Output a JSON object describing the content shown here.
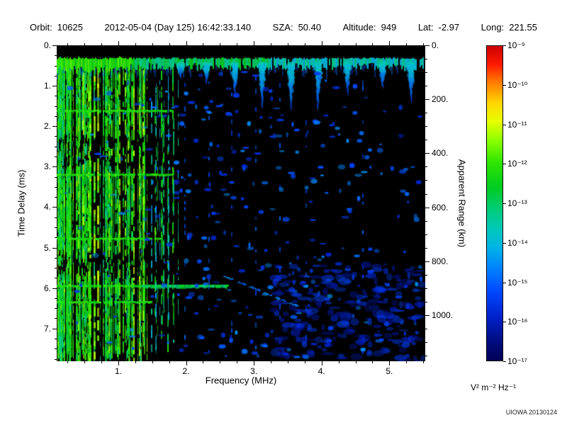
{
  "header": {
    "items": [
      {
        "label": "Orbit:",
        "value": "10625"
      },
      {
        "label": "",
        "value": "2012-05-04 (Day 125) 16:42:33.140"
      },
      {
        "label": "SZA:",
        "value": "50.40"
      },
      {
        "label": "Altitude:",
        "value": "949"
      },
      {
        "label": "Lat:",
        "value": "-2.97"
      },
      {
        "label": "Long:",
        "value": "221.55"
      }
    ]
  },
  "footer": {
    "credit": "UIOWA 20130124"
  },
  "chart_data": {
    "type": "heatmap",
    "subtype": "radar-sounder-ionogram",
    "xlabel": "Frequency (MHz)",
    "ylabel": "Time Delay (ms)",
    "y2label": "Apparent Range (km)",
    "x_range": [
      0.09,
      5.53
    ],
    "y_range_ms": [
      0,
      7.81
    ],
    "y_axis_inverted": true,
    "x_ticks": [
      "1.",
      "2.",
      "3.",
      "4.",
      "5."
    ],
    "x_tick_values": [
      1,
      2,
      3,
      4,
      5
    ],
    "y_ticks": [
      "0.",
      "1.",
      "2.",
      "3.",
      "4.",
      "5.",
      "6.",
      "7."
    ],
    "y_tick_values": [
      0,
      1,
      2,
      3,
      4,
      5,
      6,
      7
    ],
    "y2_ticks": [
      "0.",
      "200.",
      "400.",
      "600.",
      "800.",
      "1000."
    ],
    "y2_tick_values": [
      0,
      200,
      400,
      600,
      800,
      1000
    ],
    "y2_km_per_ms": 149.9,
    "background": "#000000",
    "grid": false,
    "colorbar": {
      "unit": "V² m⁻² Hz⁻¹",
      "scale": "log",
      "min": "1e-17",
      "max": "1e-9",
      "tick_labels": [
        "10⁻⁹",
        "10⁻¹⁰",
        "10⁻¹¹",
        "10⁻¹²",
        "10⁻¹³",
        "10⁻¹⁴",
        "10⁻¹⁵",
        "10⁻¹⁶",
        "10⁻¹⁷"
      ],
      "stops": [
        {
          "pos": 0.0,
          "color": "#cc0000"
        },
        {
          "pos": 0.06,
          "color": "#ff1a00"
        },
        {
          "pos": 0.11,
          "color": "#ff7300"
        },
        {
          "pos": 0.18,
          "color": "#ffd500"
        },
        {
          "pos": 0.24,
          "color": "#e8ff00"
        },
        {
          "pos": 0.3,
          "color": "#8cff00"
        },
        {
          "pos": 0.37,
          "color": "#2fe600"
        },
        {
          "pos": 0.45,
          "color": "#00cc22"
        },
        {
          "pos": 0.52,
          "color": "#00cc7a"
        },
        {
          "pos": 0.58,
          "color": "#00c9b8"
        },
        {
          "pos": 0.64,
          "color": "#00b4e6"
        },
        {
          "pos": 0.71,
          "color": "#0080ff"
        },
        {
          "pos": 0.78,
          "color": "#0048ff"
        },
        {
          "pos": 0.86,
          "color": "#0022cc"
        },
        {
          "pos": 0.93,
          "color": "#001088"
        },
        {
          "pos": 1.0,
          "color": "#000055"
        }
      ]
    },
    "features": {
      "description": "Mars radar-sounder ionogram: dense vertical plasma striations below ~1.9 MHz (green/cyan), horizontal surface-reflection band near 0.33 ms across all frequencies with periodic diffuse echoes hanging below it, electron-cyclotron horizontal echo lines at ~1.57 ms spacing in the low-frequency region, scattered weak blue echoes mid-band, and a faint diffuse patch at lower right.",
      "striation_band": {
        "freq_range": [
          0.09,
          1.88
        ],
        "dense_freq_max": 1.47,
        "n_lines": 120,
        "sparse_gaps_ms": [
          [
            2.15,
            2.95
          ],
          [
            5.0,
            5.65
          ]
        ]
      },
      "surface_echo": {
        "time_delay_ms": 0.33,
        "thickness_ms": 0.22
      },
      "hanging_echo_freqs": [
        1.92,
        2.3,
        2.72,
        3.12,
        3.55,
        3.95,
        4.38,
        4.9,
        5.32
      ],
      "cyclotron_lines": [
        {
          "t_ms": 1.62,
          "f_max": 1.8
        },
        {
          "t_ms": 3.2,
          "f_max": 1.8
        },
        {
          "t_ms": 4.78,
          "f_max": 1.62
        },
        {
          "t_ms": 5.95,
          "f_max": 2.62,
          "bright_segment": [
            1.35,
            2.6
          ]
        },
        {
          "t_ms": 6.35,
          "f_max": 1.5
        }
      ],
      "interference_columns": [
        1.97,
        2.33,
        2.66,
        3.02,
        3.38,
        3.76,
        4.6
      ],
      "diagonal_streak": {
        "f_range": [
          2.55,
          3.65
        ],
        "t_range": [
          5.7,
          6.45
        ]
      },
      "diffuse_patch": {
        "freq_range": [
          3.3,
          5.5
        ],
        "t_range": [
          5.4,
          7.8
        ],
        "blobs": 260
      },
      "speckle_count": 650
    }
  }
}
